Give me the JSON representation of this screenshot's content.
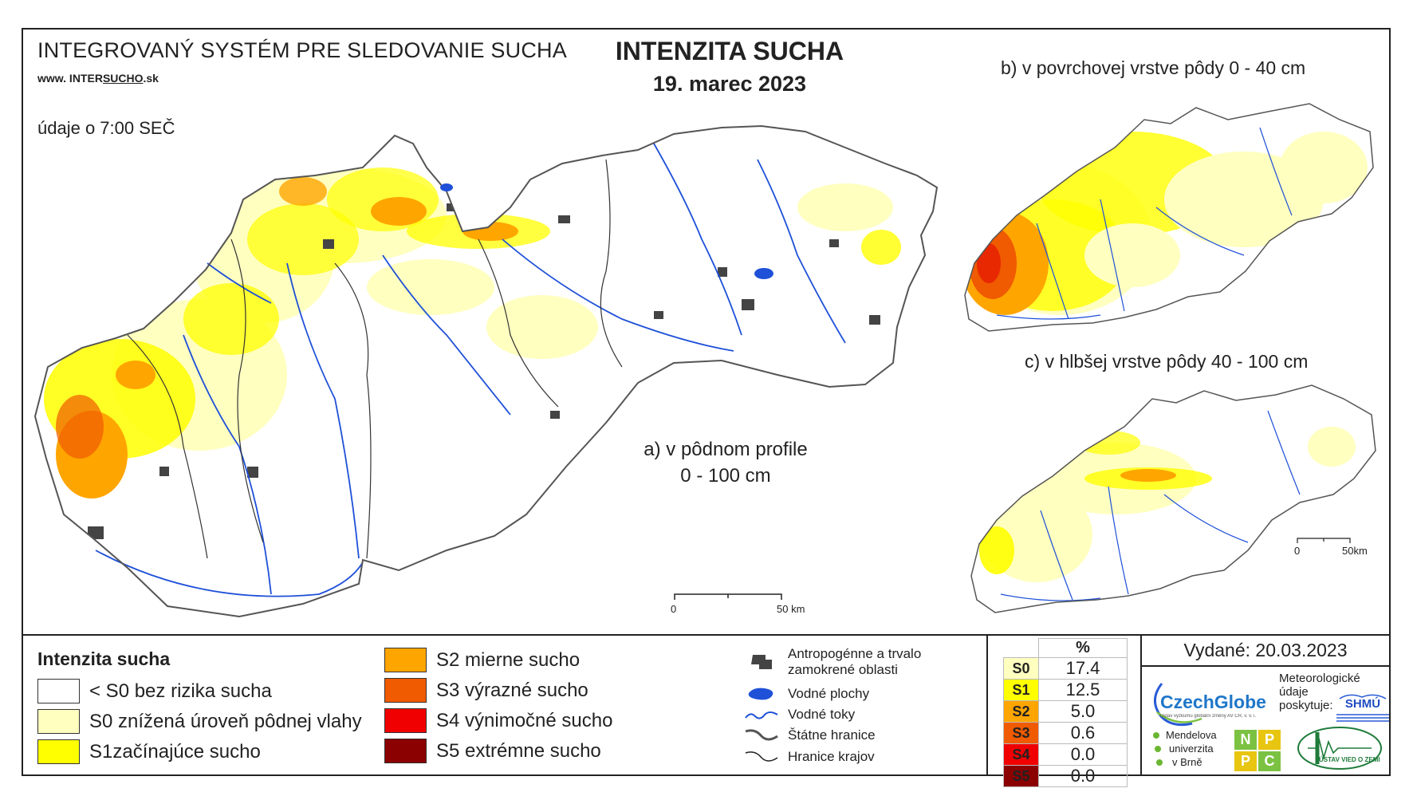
{
  "header": {
    "system_title": "INTEGROVANÝ SYSTÉM PRE SLEDOVANIE SUCHA",
    "url_prefix": "www. INTER",
    "url_underlined": "SUCHO",
    "url_suffix": ".sk",
    "data_time": "údaje o 7:00 SEČ",
    "title": "INTENZITA SUCHA",
    "date": "19. marec 2023"
  },
  "maps": {
    "a_caption_line1": "a) v pôdnom profile",
    "a_caption_line2": "0 - 100 cm",
    "b_caption": "b) v povrchovej vrstve pôdy 0 - 40 cm",
    "c_caption": "c) v hlbšej vrstve pôdy 40 - 100 cm",
    "scale_main_zero": "0",
    "scale_main_end": "50 km",
    "scale_small_zero": "0",
    "scale_small_end": "50km"
  },
  "legend": {
    "title": "Intenzita sucha",
    "classes": [
      {
        "label": "< S0 bez rizika sucha",
        "color": "#ffffff"
      },
      {
        "label": "S0 znížená úroveň pôdnej vlahy",
        "color": "#ffffc0"
      },
      {
        "label": "S1začínajúce sucho",
        "color": "#ffff00"
      },
      {
        "label": "S2 mierne sucho",
        "color": "#ffa500"
      },
      {
        "label": "S3 výrazné sucho",
        "color": "#f05a00"
      },
      {
        "label": "S4 výnimočné sucho",
        "color": "#f00000"
      },
      {
        "label": "S5 extrémne sucho",
        "color": "#8b0000"
      }
    ],
    "map_symbols": {
      "urban_line1": "Antropogénne a trvalo",
      "urban_line2": "zamokrené oblasti",
      "water_bodies": "Vodné plochy",
      "rivers": "Vodné toky",
      "state_border": "Štátne hranice",
      "region_border": "Hranice krajov"
    },
    "pct_header": "%",
    "pct_rows": [
      {
        "cls": "S0",
        "value": "17.4",
        "color": "#ffffc0"
      },
      {
        "cls": "S1",
        "value": "12.5",
        "color": "#ffff00"
      },
      {
        "cls": "S2",
        "value": "5.0",
        "color": "#ffa500"
      },
      {
        "cls": "S3",
        "value": "0.6",
        "color": "#f05a00"
      },
      {
        "cls": "S4",
        "value": "0.0",
        "color": "#f00000"
      },
      {
        "cls": "S5",
        "value": "0.0",
        "color": "#8b0000"
      }
    ]
  },
  "footer": {
    "issued": "Vydané: 20.03.2023",
    "czechglobe_name": "CzechGlobe",
    "czechglobe_sub": "Ústav výzkumu globální změny AV ČR, v. v. i.",
    "meteo_line1": "Meteorologické",
    "meteo_line2": "údaje",
    "meteo_line3": "poskytuje:",
    "shmu": "SHMÚ",
    "mendel_line1": "Mendelova",
    "mendel_line2": "univerzita",
    "mendel_line3": "v Brně",
    "nppc": [
      "N",
      "P",
      "P",
      "C"
    ],
    "uvz": "ÚSTAV VIED O ZEMI"
  }
}
